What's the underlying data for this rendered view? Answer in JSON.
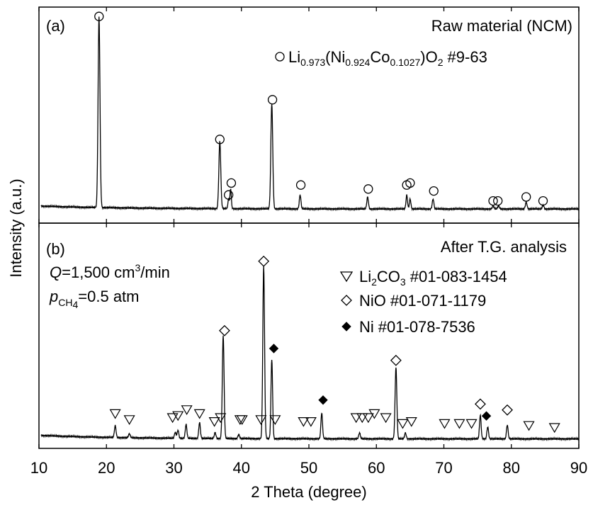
{
  "chart_data": {
    "type": "line",
    "xlabel": "2 Theta (degree)",
    "ylabel": "Intensity (a.u.)",
    "xlim": [
      10,
      90
    ],
    "xticks": [
      "10",
      "20",
      "30",
      "40",
      "50",
      "60",
      "70",
      "80",
      "90"
    ],
    "panels": [
      {
        "id": "a",
        "panel_label": "(a)",
        "title": "Raw material (NCM)",
        "legend": [
          {
            "marker": "open-circle",
            "parts": {
              "main": "Li",
              "li_sub": "0.973",
              "open": "(Ni",
              "ni_sub": "0.924",
              "co": "Co",
              "co_sub": "0.1027",
              "close": ")O",
              "o_sub": "2",
              "ref": "#9-63"
            }
          }
        ],
        "baseline": 0.025,
        "peaks": [
          {
            "x": 18.9,
            "h": 0.96,
            "w": 0.14
          },
          {
            "x": 36.8,
            "h": 0.34,
            "w": 0.14
          },
          {
            "x": 38.1,
            "h": 0.05,
            "w": 0.1
          },
          {
            "x": 38.4,
            "h": 0.1,
            "w": 0.1
          },
          {
            "x": 44.5,
            "h": 0.53,
            "w": 0.14
          },
          {
            "x": 48.7,
            "h": 0.07,
            "w": 0.12
          },
          {
            "x": 58.7,
            "h": 0.06,
            "w": 0.12
          },
          {
            "x": 64.5,
            "h": 0.07,
            "w": 0.11
          },
          {
            "x": 65.0,
            "h": 0.05,
            "w": 0.11
          },
          {
            "x": 68.4,
            "h": 0.05,
            "w": 0.12
          },
          {
            "x": 77.3,
            "h": 0.015,
            "w": 0.12
          },
          {
            "x": 78.1,
            "h": 0.015,
            "w": 0.12
          },
          {
            "x": 82.2,
            "h": 0.035,
            "w": 0.12
          },
          {
            "x": 84.7,
            "h": 0.02,
            "w": 0.12
          }
        ],
        "markers": [
          {
            "x": 18.9,
            "type": "open-circle",
            "y": 0.96
          },
          {
            "x": 36.8,
            "type": "open-circle",
            "y": 0.34
          },
          {
            "x": 38.1,
            "type": "open-circle",
            "y": 0.06
          },
          {
            "x": 38.5,
            "type": "open-circle",
            "y": 0.12
          },
          {
            "x": 44.6,
            "type": "open-circle",
            "y": 0.54
          },
          {
            "x": 48.8,
            "type": "open-circle",
            "y": 0.11
          },
          {
            "x": 58.8,
            "type": "open-circle",
            "y": 0.09
          },
          {
            "x": 64.5,
            "type": "open-circle",
            "y": 0.11
          },
          {
            "x": 65.0,
            "type": "open-circle",
            "y": 0.12
          },
          {
            "x": 68.5,
            "type": "open-circle",
            "y": 0.08
          },
          {
            "x": 77.3,
            "type": "open-circle",
            "y": 0.03
          },
          {
            "x": 78.0,
            "type": "open-circle",
            "y": 0.03
          },
          {
            "x": 82.2,
            "type": "open-circle",
            "y": 0.05
          },
          {
            "x": 84.7,
            "type": "open-circle",
            "y": 0.03
          }
        ]
      },
      {
        "id": "b",
        "panel_label": "(b)",
        "title": "After T.G. analysis",
        "conditions": {
          "q_symbol": "Q",
          "q_text": "=1,500 cm",
          "q_sup": "3",
          "q_unit": "/min",
          "p_symbol": "p",
          "p_sub": "CH",
          "p_sub2": "4",
          "p_text": "=0.5 atm"
        },
        "legend": [
          {
            "marker": "open-triangle-down",
            "parts": {
              "main": "Li",
              "sub": "2",
              "mid": "CO",
              "sub2": "3",
              "ref": "#01-083-1454"
            }
          },
          {
            "marker": "open-diamond",
            "parts": {
              "main": "NiO",
              "ref": "#01-071-1179"
            }
          },
          {
            "marker": "filled-diamond",
            "parts": {
              "main": "Ni",
              "ref": "#01-078-7536"
            }
          }
        ],
        "baseline": 0.03,
        "peaks": [
          {
            "x": 21.3,
            "h": 0.06,
            "w": 0.12
          },
          {
            "x": 23.4,
            "h": 0.02,
            "w": 0.12
          },
          {
            "x": 30.2,
            "h": 0.03,
            "w": 0.12
          },
          {
            "x": 30.6,
            "h": 0.04,
            "w": 0.12
          },
          {
            "x": 31.8,
            "h": 0.07,
            "w": 0.12
          },
          {
            "x": 33.8,
            "h": 0.08,
            "w": 0.12
          },
          {
            "x": 36.1,
            "h": 0.03,
            "w": 0.12
          },
          {
            "x": 37.3,
            "h": 0.52,
            "w": 0.13
          },
          {
            "x": 39.6,
            "h": 0.02,
            "w": 0.12
          },
          {
            "x": 43.3,
            "h": 0.87,
            "w": 0.13
          },
          {
            "x": 44.5,
            "h": 0.4,
            "w": 0.12
          },
          {
            "x": 51.9,
            "h": 0.13,
            "w": 0.12
          },
          {
            "x": 57.5,
            "h": 0.03,
            "w": 0.12
          },
          {
            "x": 62.9,
            "h": 0.36,
            "w": 0.13
          },
          {
            "x": 64.3,
            "h": 0.03,
            "w": 0.12
          },
          {
            "x": 75.4,
            "h": 0.12,
            "w": 0.12
          },
          {
            "x": 76.5,
            "h": 0.06,
            "w": 0.12
          },
          {
            "x": 79.4,
            "h": 0.07,
            "w": 0.12
          }
        ],
        "markers": [
          {
            "x": 21.3,
            "type": "open-triangle-down",
            "y": 0.12
          },
          {
            "x": 23.4,
            "type": "open-triangle-down",
            "y": 0.09
          },
          {
            "x": 29.8,
            "type": "open-triangle-down",
            "y": 0.1
          },
          {
            "x": 30.6,
            "type": "open-triangle-down",
            "y": 0.11
          },
          {
            "x": 31.9,
            "type": "open-triangle-down",
            "y": 0.14
          },
          {
            "x": 33.8,
            "type": "open-triangle-down",
            "y": 0.12
          },
          {
            "x": 36.0,
            "type": "open-triangle-down",
            "y": 0.08
          },
          {
            "x": 36.9,
            "type": "open-triangle-down",
            "y": 0.1
          },
          {
            "x": 39.8,
            "type": "open-triangle-down",
            "y": 0.09
          },
          {
            "x": 40.1,
            "type": "open-triangle-down",
            "y": 0.09
          },
          {
            "x": 42.9,
            "type": "open-triangle-down",
            "y": 0.09
          },
          {
            "x": 45.0,
            "type": "open-triangle-down",
            "y": 0.09
          },
          {
            "x": 49.2,
            "type": "open-triangle-down",
            "y": 0.08
          },
          {
            "x": 50.3,
            "type": "open-triangle-down",
            "y": 0.08
          },
          {
            "x": 57.0,
            "type": "open-triangle-down",
            "y": 0.1
          },
          {
            "x": 57.9,
            "type": "open-triangle-down",
            "y": 0.1
          },
          {
            "x": 58.8,
            "type": "open-triangle-down",
            "y": 0.1
          },
          {
            "x": 59.7,
            "type": "open-triangle-down",
            "y": 0.12
          },
          {
            "x": 61.4,
            "type": "open-triangle-down",
            "y": 0.1
          },
          {
            "x": 63.9,
            "type": "open-triangle-down",
            "y": 0.07
          },
          {
            "x": 65.2,
            "type": "open-triangle-down",
            "y": 0.08
          },
          {
            "x": 70.1,
            "type": "open-triangle-down",
            "y": 0.07
          },
          {
            "x": 72.3,
            "type": "open-triangle-down",
            "y": 0.07
          },
          {
            "x": 74.1,
            "type": "open-triangle-down",
            "y": 0.07
          },
          {
            "x": 82.6,
            "type": "open-triangle-down",
            "y": 0.06
          },
          {
            "x": 86.4,
            "type": "open-triangle-down",
            "y": 0.05
          },
          {
            "x": 37.5,
            "type": "open-diamond",
            "y": 0.54
          },
          {
            "x": 43.3,
            "type": "open-diamond",
            "y": 0.89
          },
          {
            "x": 62.9,
            "type": "open-diamond",
            "y": 0.39
          },
          {
            "x": 75.4,
            "type": "open-diamond",
            "y": 0.17
          },
          {
            "x": 79.4,
            "type": "open-diamond",
            "y": 0.14
          },
          {
            "x": 44.8,
            "type": "filled-diamond",
            "y": 0.45
          },
          {
            "x": 52.1,
            "type": "filled-diamond",
            "y": 0.19
          },
          {
            "x": 76.3,
            "type": "filled-diamond",
            "y": 0.11
          }
        ]
      }
    ]
  }
}
